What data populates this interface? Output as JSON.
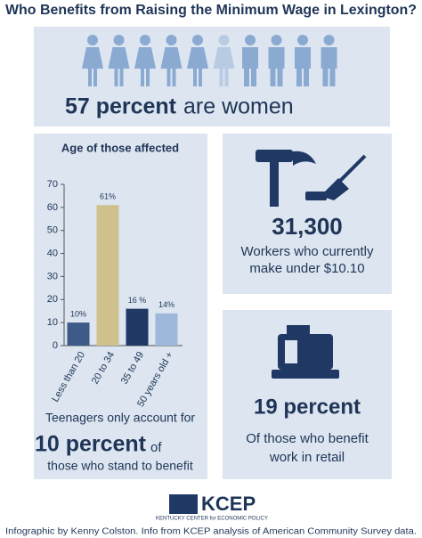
{
  "title": "Who Benefits from Raising the Minimum Wage in Lexington?",
  "women": {
    "highlight": "57 percent",
    "text": "are women"
  },
  "chart_data": {
    "type": "bar",
    "title": "Age of those affected",
    "categories": [
      "Less than 20",
      "20 to 34",
      "35 to 49",
      "50 years old +"
    ],
    "values": [
      10,
      61,
      16,
      14
    ],
    "value_labels": [
      "10%",
      "61%",
      "16 %",
      "14%"
    ],
    "colors": [
      "#3e5a88",
      "#cfc18c",
      "#1f3864",
      "#9db8da"
    ],
    "ylim": [
      0,
      70
    ],
    "yticks": [
      0,
      10,
      20,
      30,
      40,
      50,
      60,
      70
    ]
  },
  "teens": {
    "line1": "Teenagers only account for",
    "highlight": "10 percent",
    "suffix": "of",
    "line2": "those who stand to benefit"
  },
  "workers": {
    "highlight": "31,300",
    "line1": "Workers who currently",
    "line2": "make under $10.10"
  },
  "retail": {
    "highlight": "19 percent",
    "line1": "Of those who benefit",
    "line2": "work in retail"
  },
  "logo": {
    "name": "KCEP",
    "subtitle": "KENTUCKY CENTER for ECONOMIC POLICY"
  },
  "credit": "Infographic by Kenny Colston. Info from KCEP analysis of American Community Survey data."
}
